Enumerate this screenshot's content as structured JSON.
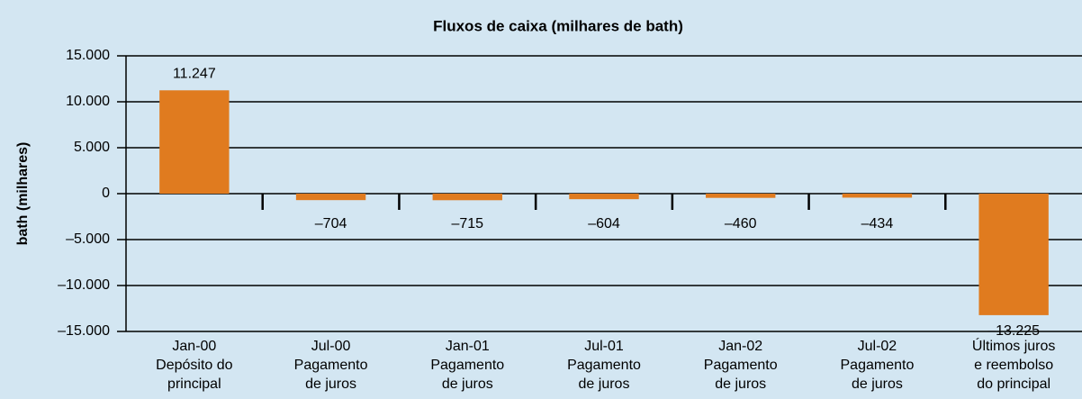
{
  "chart_data": {
    "type": "bar",
    "title": "Fluxos de caixa (milhares de bath)",
    "ylabel": "bath (milhares)",
    "categories": [
      [
        "Jan-00",
        "Depósito do",
        "principal"
      ],
      [
        "Jul-00",
        "Pagamento",
        "de juros"
      ],
      [
        "Jan-01",
        "Pagamento",
        "de juros"
      ],
      [
        "Jul-01",
        "Pagamento",
        "de juros"
      ],
      [
        "Jan-02",
        "Pagamento",
        "de juros"
      ],
      [
        "Jul-02",
        "Pagamento",
        "de juros"
      ],
      [
        "Últimos juros",
        "e reembolso",
        "do principal"
      ]
    ],
    "values": [
      11247,
      -704,
      -715,
      -604,
      -460,
      -434,
      -13225
    ],
    "value_labels": [
      "11.247",
      "–704",
      "–715",
      "–604",
      "–460",
      "–434",
      "–13.225"
    ],
    "color": "#e07b1f",
    "ylim": [
      -15000,
      15000
    ],
    "yticks": [
      {
        "value": -15000,
        "label": "–15.000"
      },
      {
        "value": -10000,
        "label": "–10.000"
      },
      {
        "value": -5000,
        "label": "–5.000"
      },
      0,
      {
        "value": 5000,
        "label": "5.000"
      },
      {
        "value": 10000,
        "label": "10.000"
      },
      {
        "value": 15000,
        "label": "15.000"
      }
    ],
    "grid": true
  }
}
